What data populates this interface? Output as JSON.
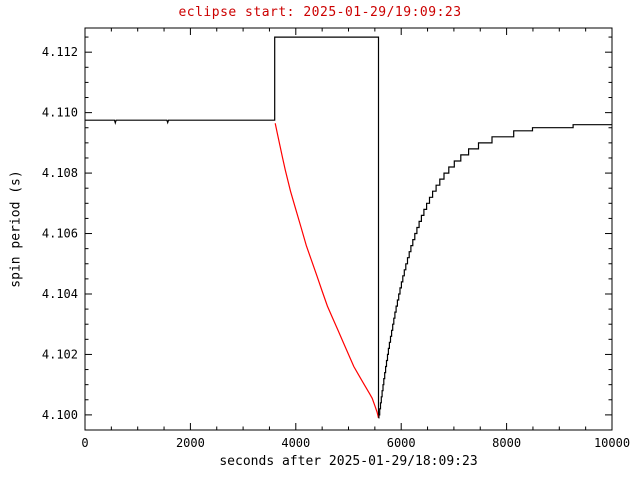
{
  "colors": {
    "background": "#ffffff",
    "axis": "#000000",
    "title_red": "#cc0000",
    "curve_red": "#ff0000",
    "curve_black": "#000000"
  },
  "chart_data": {
    "type": "line",
    "title": "eclipse start: 2025-01-29/19:09:23",
    "xlabel": "seconds after 2025-01-29/18:09:23",
    "ylabel": "spin period (s)",
    "xlim": [
      0,
      10000
    ],
    "ylim": [
      4.0995,
      4.1128
    ],
    "grid": false,
    "x_tick_values": [
      0,
      2000,
      4000,
      6000,
      8000,
      10000
    ],
    "x_tick_labels": [
      "0",
      "2000",
      "4000",
      "6000",
      "8000",
      "10000"
    ],
    "x_minor_step": 500,
    "y_tick_values": [
      4.1,
      4.102,
      4.104,
      4.106,
      4.108,
      4.11,
      4.112
    ],
    "y_tick_labels": [
      "4.100",
      "4.102",
      "4.104",
      "4.106",
      "4.108",
      "4.110",
      "4.112"
    ],
    "y_minor_step": 0.0005,
    "eclipse_interval": {
      "start_s": 3600,
      "end_s": 5570,
      "flag_top": 4.1125,
      "pre_eclipse_level": 4.10975,
      "minimum": 4.0999
    },
    "series": [
      {
        "name": "pre-eclipse-and-flag-black",
        "color": "#000000",
        "mode": "line",
        "points": [
          [
            0,
            4.10975
          ],
          [
            560,
            4.10975
          ],
          [
            575,
            4.10966
          ],
          [
            590,
            4.10975
          ],
          [
            1555,
            4.10975
          ],
          [
            1570,
            4.10967
          ],
          [
            1585,
            4.10975
          ],
          [
            3600,
            4.10975
          ],
          [
            3600,
            4.1125
          ],
          [
            5570,
            4.1125
          ],
          [
            5570,
            4.0999
          ]
        ]
      },
      {
        "name": "eclipse-spin-down-red",
        "color": "#ff0000",
        "mode": "line",
        "points": [
          [
            3610,
            4.10965
          ],
          [
            3650,
            4.1093
          ],
          [
            3700,
            4.1089
          ],
          [
            3750,
            4.1085
          ],
          [
            3800,
            4.1081
          ],
          [
            3900,
            4.1074
          ],
          [
            4000,
            4.1068
          ],
          [
            4100,
            4.1062
          ],
          [
            4200,
            4.1056
          ],
          [
            4300,
            4.1051
          ],
          [
            4400,
            4.1046
          ],
          [
            4500,
            4.1041
          ],
          [
            4600,
            4.1036
          ],
          [
            4700,
            4.1032
          ],
          [
            4800,
            4.1028
          ],
          [
            4900,
            4.1024
          ],
          [
            5000,
            4.102
          ],
          [
            5100,
            4.1016
          ],
          [
            5200,
            4.1013
          ],
          [
            5300,
            4.101
          ],
          [
            5400,
            4.1007
          ],
          [
            5450,
            4.10055
          ],
          [
            5500,
            4.1003
          ],
          [
            5540,
            4.1001
          ],
          [
            5570,
            4.0999
          ]
        ]
      },
      {
        "name": "post-eclipse-recovery-black",
        "color": "#000000",
        "mode": "step",
        "points": [
          [
            5570,
            4.0999
          ],
          [
            5577,
            4.1
          ],
          [
            5592,
            4.1002
          ],
          [
            5607,
            4.1004
          ],
          [
            5622,
            4.1006
          ],
          [
            5638,
            4.1008
          ],
          [
            5654,
            4.101
          ],
          [
            5670,
            4.1012
          ],
          [
            5687,
            4.1014
          ],
          [
            5704,
            4.1016
          ],
          [
            5722,
            4.1018
          ],
          [
            5740,
            4.102
          ],
          [
            5758,
            4.1022
          ],
          [
            5777,
            4.1024
          ],
          [
            5797,
            4.1026
          ],
          [
            5817,
            4.1028
          ],
          [
            5838,
            4.103
          ],
          [
            5859,
            4.1032
          ],
          [
            5881,
            4.1034
          ],
          [
            5904,
            4.1036
          ],
          [
            5928,
            4.1038
          ],
          [
            5952,
            4.104
          ],
          [
            5977,
            4.1042
          ],
          [
            6003,
            4.1044
          ],
          [
            6030,
            4.1046
          ],
          [
            6059,
            4.1048
          ],
          [
            6088,
            4.105
          ],
          [
            6119,
            4.1052
          ],
          [
            6151,
            4.1054
          ],
          [
            6185,
            4.1056
          ],
          [
            6220,
            4.1058
          ],
          [
            6258,
            4.106
          ],
          [
            6297,
            4.1062
          ],
          [
            6339,
            4.1064
          ],
          [
            6383,
            4.1066
          ],
          [
            6431,
            4.1068
          ],
          [
            6482,
            4.107
          ],
          [
            6537,
            4.1072
          ],
          [
            6596,
            4.1074
          ],
          [
            6662,
            4.1076
          ],
          [
            6733,
            4.1078
          ],
          [
            6813,
            4.108
          ],
          [
            6904,
            4.1082
          ],
          [
            7008,
            4.1084
          ],
          [
            7130,
            4.1086
          ],
          [
            7278,
            4.1088
          ],
          [
            7466,
            4.109
          ],
          [
            7723,
            4.1092
          ],
          [
            8135,
            4.1094
          ],
          [
            8492,
            4.1095
          ],
          [
            9261,
            4.1096
          ],
          [
            10000,
            4.1096
          ]
        ]
      }
    ]
  }
}
